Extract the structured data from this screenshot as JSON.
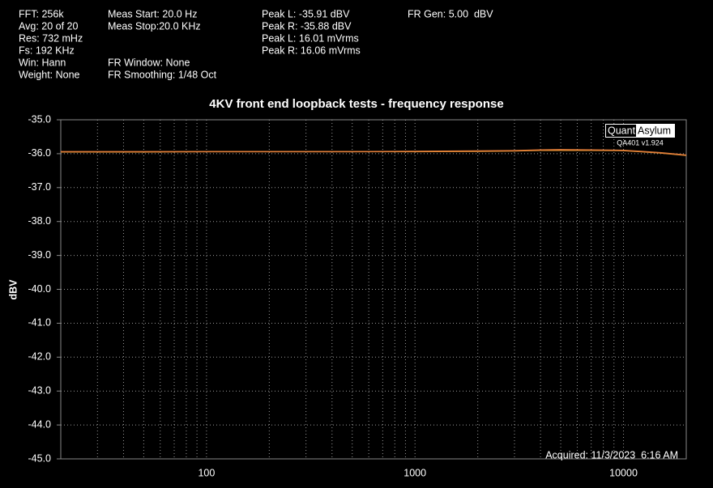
{
  "chart_data": {
    "type": "line",
    "title": "4KV front end loopback tests - frequency response",
    "ylabel": "dBV",
    "info_lines": [
      "FFT: 256k",
      "Avg: 20 of 20",
      "Res: 732 mHz",
      "Fs: 192 KHz",
      "Win: Hann",
      "Weight: None",
      "Meas Start: 20.0 Hz",
      "Meas Stop:20.0 KHz",
      "FR Window: None",
      "FR Smoothing: 1/48 Oct",
      "Peak L: -35.91 dBV",
      "Peak R: -35.88 dBV",
      "Peak L: 16.01 mVrms",
      "Peak R: 16.06 mVrms",
      "FR Gen: 5.00  dBV"
    ],
    "logo": [
      "Quant",
      "Asylum"
    ],
    "version": "QA401 v1.924",
    "acquired": "Acquired: 11/3/2023  6:16 AM",
    "x_log": true,
    "grid": true,
    "xlim": [
      20,
      20000
    ],
    "xticks": [
      100,
      1000,
      10000
    ],
    "xminor": [
      30,
      40,
      50,
      60,
      70,
      80,
      90,
      200,
      300,
      400,
      500,
      600,
      700,
      800,
      900,
      2000,
      3000,
      4000,
      5000,
      6000,
      7000,
      8000,
      9000
    ],
    "ylim": [
      -45,
      -35
    ],
    "yticks": [
      {
        "value": -35,
        "label": "-35.0"
      },
      {
        "value": -36,
        "label": "-36.0"
      },
      {
        "value": -37,
        "label": "-37.0"
      },
      {
        "value": -38,
        "label": "-38.0"
      },
      {
        "value": -39,
        "label": "-39.0"
      },
      {
        "value": -40,
        "label": "-40.0"
      },
      {
        "value": -41,
        "label": "-41.0"
      },
      {
        "value": -42,
        "label": "-42.0"
      },
      {
        "value": -43,
        "label": "-43.0"
      },
      {
        "value": -44,
        "label": "-44.0"
      },
      {
        "value": -45,
        "label": "-45.0"
      }
    ],
    "x": [
      20,
      50,
      100,
      200,
      500,
      1000,
      2000,
      3000,
      4000,
      5000,
      7000,
      10000,
      12000,
      15000,
      20000
    ],
    "series": [
      {
        "color": "#f0a030",
        "values": [
          -35.95,
          -35.95,
          -35.94,
          -35.94,
          -35.94,
          -35.94,
          -35.93,
          -35.92,
          -35.9,
          -35.9,
          -35.9,
          -35.91,
          -35.94,
          -35.98,
          -36.05
        ]
      },
      {
        "color": "#e07b39",
        "values": [
          -35.94,
          -35.94,
          -35.94,
          -35.94,
          -35.94,
          -35.93,
          -35.92,
          -35.91,
          -35.89,
          -35.88,
          -35.89,
          -35.9,
          -35.93,
          -35.97,
          -36.04
        ]
      }
    ]
  }
}
